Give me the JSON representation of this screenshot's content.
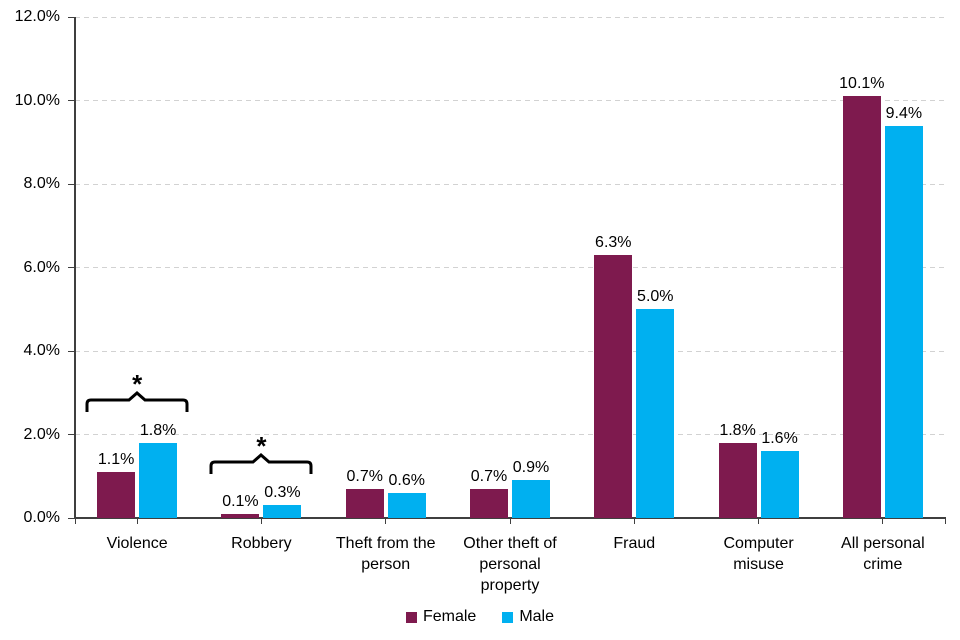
{
  "chart_data": {
    "type": "bar",
    "title": "",
    "categories": [
      "Violence",
      "Robbery",
      "Theft from the person",
      "Other theft of personal property",
      "Fraud",
      "Computer misuse",
      "All personal crime"
    ],
    "series": [
      {
        "name": "Female",
        "color": "#7E1A4E",
        "values": [
          1.1,
          0.1,
          0.7,
          0.7,
          6.3,
          1.8,
          10.1
        ],
        "labels": [
          "1.1%",
          "0.1%",
          "0.7%",
          "0.7%",
          "6.3%",
          "1.8%",
          "10.1%"
        ]
      },
      {
        "name": "Male",
        "color": "#00B0F0",
        "values": [
          1.8,
          0.3,
          0.6,
          0.9,
          5.0,
          1.6,
          9.4
        ],
        "labels": [
          "1.8%",
          "0.3%",
          "0.6%",
          "0.9%",
          "5.0%",
          "1.6%",
          "9.4%"
        ]
      }
    ],
    "y_axis": {
      "tick_labels": [
        "0.0%",
        "2.0%",
        "4.0%",
        "6.0%",
        "8.0%",
        "10.0%",
        "12.0%"
      ],
      "min": 0,
      "max": 12,
      "step": 2
    },
    "ylim": [
      0,
      12
    ],
    "grid": "horizontal-dashed",
    "legend_position": "bottom-center",
    "significance_markers": [
      {
        "category": "Violence",
        "symbol": "*"
      },
      {
        "category": "Robbery",
        "symbol": "*"
      }
    ],
    "colors": {
      "female_bar": "#7E1A4E",
      "male_bar": "#00B0F0",
      "axis": "#3F3F3F",
      "gridline": "#D2D2D2",
      "text": "#000000"
    }
  }
}
